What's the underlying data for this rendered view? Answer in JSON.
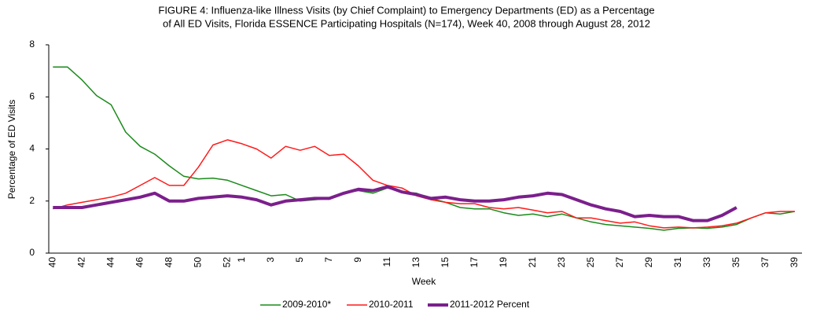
{
  "chart_data": {
    "type": "line",
    "title": [
      "FIGURE 4: Influenza-like Illness Visits (by Chief Complaint) to Emergency Departments (ED) as a Percentage",
      "of All ED Visits, Florida ESSENCE Participating Hospitals (N=174), Week 40, 2008 through  August 28, 2012"
    ],
    "x_label": "Week",
    "y_label": "Percentage of ED Visits",
    "categories": [
      "40",
      null,
      "42",
      null,
      "44",
      null,
      "46",
      null,
      "48",
      null,
      "50",
      null,
      "52",
      "1",
      null,
      "3",
      null,
      "5",
      null,
      "7",
      null,
      "9",
      null,
      "11",
      null,
      "13",
      null,
      "15",
      null,
      "17",
      null,
      "19",
      null,
      "21",
      null,
      "23",
      null,
      "25",
      null,
      "27",
      null,
      "29",
      null,
      "31",
      null,
      "33",
      null,
      "35",
      null,
      "37",
      null,
      "39"
    ],
    "ylim": [
      0,
      8
    ],
    "yticks": [
      0,
      2,
      4,
      6,
      8
    ],
    "legend": "bottom",
    "series": [
      {
        "name": "2009-2010*",
        "color": "#1a8a1a",
        "values": [
          7.15,
          7.15,
          6.65,
          6.05,
          5.7,
          4.65,
          4.1,
          3.8,
          3.35,
          2.95,
          2.85,
          2.88,
          2.8,
          2.6,
          2.4,
          2.2,
          2.25,
          2.0,
          2.05,
          2.1,
          2.3,
          2.4,
          2.3,
          2.5,
          2.35,
          2.3,
          2.1,
          1.95,
          1.75,
          1.7,
          1.7,
          1.55,
          1.45,
          1.5,
          1.4,
          1.5,
          1.35,
          1.2,
          1.1,
          1.05,
          1.0,
          0.95,
          0.88,
          0.95,
          0.97,
          0.95,
          1.0,
          1.1,
          1.35,
          1.55,
          1.5,
          1.6
        ]
      },
      {
        "name": "2010-2011",
        "color": "#ff1a1a",
        "values": [
          1.7,
          1.85,
          1.95,
          2.05,
          2.15,
          2.3,
          2.6,
          2.9,
          2.6,
          2.6,
          3.3,
          4.15,
          4.35,
          4.2,
          4.0,
          3.65,
          4.1,
          3.95,
          4.1,
          3.75,
          3.8,
          3.35,
          2.8,
          2.6,
          2.5,
          2.2,
          2.05,
          1.95,
          1.9,
          1.9,
          1.75,
          1.7,
          1.75,
          1.65,
          1.55,
          1.6,
          1.35,
          1.35,
          1.25,
          1.15,
          1.2,
          1.05,
          0.97,
          1.0,
          0.97,
          1.0,
          1.05,
          1.15,
          1.35,
          1.55,
          1.6,
          1.6
        ]
      },
      {
        "name": "2011-2012 Percent",
        "color": "#7b1f8c",
        "width": 4,
        "values": [
          1.75,
          1.75,
          1.75,
          1.85,
          1.95,
          2.05,
          2.15,
          2.3,
          2.0,
          2.0,
          2.1,
          2.15,
          2.2,
          2.15,
          2.05,
          1.85,
          2.0,
          2.05,
          2.1,
          2.1,
          2.3,
          2.45,
          2.4,
          2.55,
          2.35,
          2.25,
          2.1,
          2.15,
          2.05,
          2.0,
          2.0,
          2.05,
          2.15,
          2.2,
          2.3,
          2.25,
          2.05,
          1.85,
          1.7,
          1.6,
          1.4,
          1.45,
          1.4,
          1.4,
          1.25,
          1.25,
          1.45,
          1.75,
          null,
          null,
          null,
          null
        ]
      }
    ]
  }
}
